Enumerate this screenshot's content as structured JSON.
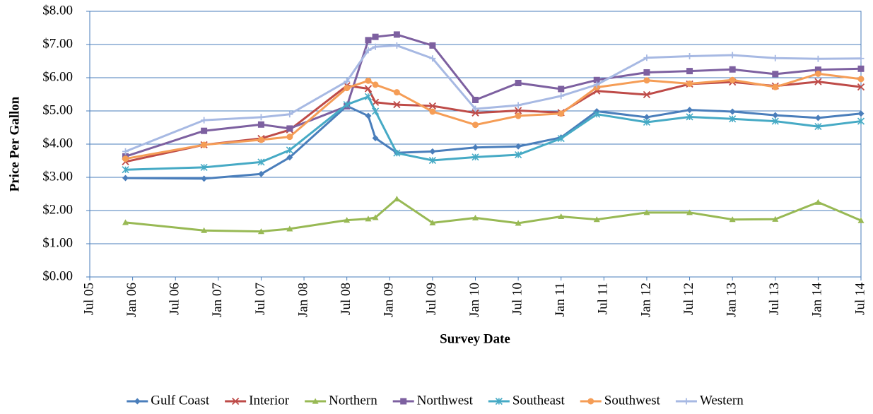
{
  "chart_data": {
    "type": "line",
    "y_label": "Price Per Gallon",
    "x_label": "Survey Date",
    "x": [
      "2005-12",
      "2006-11",
      "2007-07",
      "2007-11",
      "2008-07",
      "2008-10",
      "2008-11",
      "2009-02",
      "2009-07",
      "2010-01",
      "2010-07",
      "2011-01",
      "2011-06",
      "2012-01",
      "2012-07",
      "2013-01",
      "2013-07",
      "2014-01",
      "2014-07"
    ],
    "xlim": [
      "2005-07",
      "2014-07"
    ],
    "xticks": [
      {
        "value": "2005-07",
        "label": "Jul 05"
      },
      {
        "value": "2006-01",
        "label": "Jan 06"
      },
      {
        "value": "2006-07",
        "label": "Jul 06"
      },
      {
        "value": "2007-01",
        "label": "Jan 07"
      },
      {
        "value": "2007-07",
        "label": "Jul 07"
      },
      {
        "value": "2008-01",
        "label": "Jan 08"
      },
      {
        "value": "2008-07",
        "label": "Jul 08"
      },
      {
        "value": "2009-01",
        "label": "Jan 09"
      },
      {
        "value": "2009-07",
        "label": "Jul 09"
      },
      {
        "value": "2010-01",
        "label": "Jan 10"
      },
      {
        "value": "2010-07",
        "label": "Jul 10"
      },
      {
        "value": "2011-01",
        "label": "Jan 11"
      },
      {
        "value": "2011-07",
        "label": "Jul 11"
      },
      {
        "value": "2012-01",
        "label": "Jan 12"
      },
      {
        "value": "2012-07",
        "label": "Jul 12"
      },
      {
        "value": "2013-01",
        "label": "Jan 13"
      },
      {
        "value": "2013-07",
        "label": "Jul 13"
      },
      {
        "value": "2014-01",
        "label": "Jan 14"
      },
      {
        "value": "2014-07",
        "label": "Jul 14"
      }
    ],
    "ylim": [
      0,
      8
    ],
    "yticks": [
      {
        "value": 0,
        "label": "$0.00"
      },
      {
        "value": 1,
        "label": "$1.00"
      },
      {
        "value": 2,
        "label": "$2.00"
      },
      {
        "value": 3,
        "label": "$3.00"
      },
      {
        "value": 4,
        "label": "$4.00"
      },
      {
        "value": 5,
        "label": "$5.00"
      },
      {
        "value": 6,
        "label": "$6.00"
      },
      {
        "value": 7,
        "label": "$7.00"
      },
      {
        "value": 8,
        "label": "$8.00"
      }
    ],
    "grid": true,
    "legend": "bottom",
    "series": [
      {
        "name": "Gulf Coast",
        "color": "#4a7ebb",
        "marker": "diamond",
        "values": [
          2.98,
          2.96,
          3.1,
          3.6,
          5.15,
          4.85,
          4.18,
          3.74,
          3.78,
          3.9,
          3.93,
          4.2,
          4.99,
          4.81,
          5.03,
          4.98,
          4.87,
          4.79,
          4.92
        ]
      },
      {
        "name": "Interior",
        "color": "#be4b48",
        "marker": "x",
        "values": [
          3.47,
          3.98,
          4.17,
          4.43,
          5.76,
          5.67,
          5.26,
          5.19,
          5.15,
          4.94,
          5.01,
          4.95,
          5.6,
          5.49,
          5.81,
          5.87,
          5.75,
          5.88,
          5.72
        ]
      },
      {
        "name": "Northern",
        "color": "#98b954",
        "marker": "triangle",
        "values": [
          1.64,
          1.4,
          1.37,
          1.45,
          1.71,
          1.75,
          1.79,
          2.35,
          1.63,
          1.78,
          1.62,
          1.82,
          1.73,
          1.94,
          1.94,
          1.73,
          1.74,
          2.25,
          1.7
        ]
      },
      {
        "name": "Northwest",
        "color": "#7d60a0",
        "marker": "square",
        "values": [
          3.63,
          4.4,
          4.59,
          4.47,
          5.14,
          7.13,
          7.23,
          7.3,
          6.97,
          5.33,
          5.84,
          5.66,
          5.93,
          6.16,
          6.2,
          6.25,
          6.11,
          6.24,
          6.27
        ]
      },
      {
        "name": "Southeast",
        "color": "#46aac5",
        "marker": "star",
        "values": [
          3.23,
          3.3,
          3.46,
          3.82,
          5.19,
          5.43,
          4.99,
          3.73,
          3.51,
          3.61,
          3.68,
          4.17,
          4.9,
          4.66,
          4.82,
          4.76,
          4.69,
          4.53,
          4.69
        ]
      },
      {
        "name": "Southwest",
        "color": "#f59d56",
        "marker": "circle",
        "values": [
          3.56,
          3.98,
          4.13,
          4.22,
          5.69,
          5.91,
          5.79,
          5.56,
          4.98,
          4.58,
          4.85,
          4.92,
          5.71,
          5.92,
          5.82,
          5.93,
          5.72,
          6.12,
          5.96
        ]
      },
      {
        "name": "Western",
        "color": "#a7b9e3",
        "marker": "plus",
        "values": [
          3.78,
          4.72,
          4.81,
          4.9,
          5.89,
          6.83,
          6.93,
          6.97,
          6.58,
          5.06,
          5.17,
          5.45,
          5.79,
          6.6,
          6.65,
          6.68,
          6.59,
          6.57,
          6.58
        ]
      }
    ]
  }
}
